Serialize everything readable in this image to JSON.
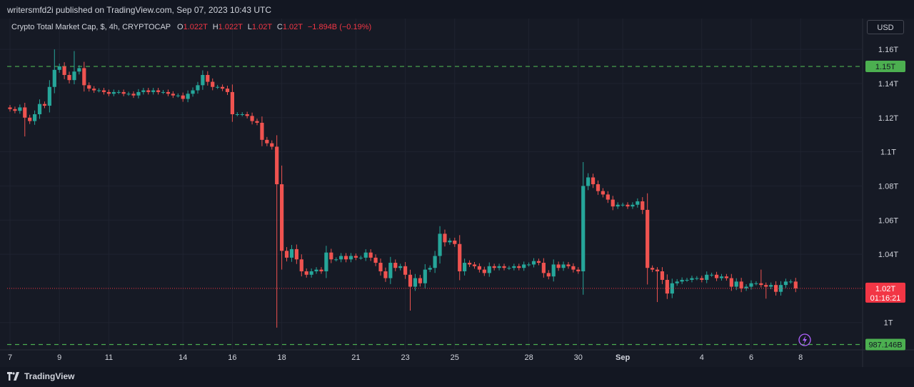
{
  "header": {
    "publisher": "writersmfd2i published on TradingView.com, Sep 07, 2023 10:43 UTC"
  },
  "legend": {
    "symbol": "Crypto Total Market Cap, $, 4h, CRYPTOCAP",
    "o_label": "O",
    "o_value": "1.022T",
    "h_label": "H",
    "h_value": "1.022T",
    "l_label": "L",
    "l_value": "1.02T",
    "c_label": "C",
    "c_value": "1.02T",
    "change": "−1.894B (−0.19%)"
  },
  "currency_button": "USD",
  "footer": {
    "brand": "TradingView"
  },
  "colors": {
    "up": "#26a69a",
    "down": "#ef5350",
    "hline": "#4caf50",
    "price_line": "#f23645",
    "background": "#161a25"
  },
  "chart_data": {
    "type": "candlestick",
    "ylim": [
      0.984,
      1.168
    ],
    "y_ticks": [
      {
        "value": 1.16,
        "label": "1.16T"
      },
      {
        "value": 1.14,
        "label": "1.14T"
      },
      {
        "value": 1.12,
        "label": "1.12T"
      },
      {
        "value": 1.1,
        "label": "1.1T"
      },
      {
        "value": 1.08,
        "label": "1.08T"
      },
      {
        "value": 1.06,
        "label": "1.06T"
      },
      {
        "value": 1.04,
        "label": "1.04T"
      },
      {
        "value": 1.0,
        "label": "1T"
      }
    ],
    "x_ticks": [
      {
        "bar": 0,
        "label": "7"
      },
      {
        "bar": 10,
        "label": "9"
      },
      {
        "bar": 20,
        "label": "11"
      },
      {
        "bar": 35,
        "label": "14"
      },
      {
        "bar": 45,
        "label": "16"
      },
      {
        "bar": 55,
        "label": "18"
      },
      {
        "bar": 70,
        "label": "21"
      },
      {
        "bar": 80,
        "label": "23"
      },
      {
        "bar": 90,
        "label": "25"
      },
      {
        "bar": 105,
        "label": "28"
      },
      {
        "bar": 115,
        "label": "30"
      },
      {
        "bar": 124,
        "label": "Sep",
        "bold": true
      },
      {
        "bar": 140,
        "label": "4"
      },
      {
        "bar": 150,
        "label": "6"
      },
      {
        "bar": 160,
        "label": "8"
      }
    ],
    "horizontal_lines": [
      {
        "value": 1.15,
        "label": "1.15T"
      },
      {
        "value": 0.98715,
        "label": "987.146B"
      }
    ],
    "last_price": {
      "value": 1.02,
      "label": "1.02T",
      "countdown": "01:16:21"
    },
    "close": [
      1.125,
      1.124,
      1.126,
      1.12,
      1.118,
      1.122,
      1.128,
      1.127,
      1.138,
      1.148,
      1.15,
      1.145,
      1.142,
      1.147,
      1.149,
      1.139,
      1.137,
      1.136,
      1.136,
      1.135,
      1.134,
      1.135,
      1.135,
      1.134,
      1.134,
      1.133,
      1.135,
      1.136,
      1.135,
      1.136,
      1.135,
      1.135,
      1.134,
      1.133,
      1.133,
      1.131,
      1.134,
      1.136,
      1.139,
      1.145,
      1.141,
      1.138,
      1.138,
      1.137,
      1.135,
      1.122,
      1.122,
      1.122,
      1.121,
      1.118,
      1.117,
      1.107,
      1.105,
      1.103,
      1.081,
      1.042,
      1.038,
      1.043,
      1.037,
      1.03,
      1.028,
      1.03,
      1.031,
      1.03,
      1.041,
      1.037,
      1.037,
      1.039,
      1.037,
      1.039,
      1.038,
      1.038,
      1.041,
      1.038,
      1.035,
      1.03,
      1.026,
      1.035,
      1.032,
      1.033,
      1.028,
      1.021,
      1.026,
      1.023,
      1.031,
      1.032,
      1.039,
      1.052,
      1.047,
      1.048,
      1.046,
      1.03,
      1.035,
      1.034,
      1.033,
      1.031,
      1.029,
      1.033,
      1.032,
      1.033,
      1.032,
      1.032,
      1.033,
      1.032,
      1.034,
      1.034,
      1.036,
      1.035,
      1.029,
      1.027,
      1.034,
      1.032,
      1.034,
      1.033,
      1.031,
      1.03,
      1.08,
      1.085,
      1.081,
      1.077,
      1.075,
      1.072,
      1.068,
      1.069,
      1.069,
      1.068,
      1.069,
      1.071,
      1.066,
      1.032,
      1.031,
      1.03,
      1.025,
      1.017,
      1.023,
      1.024,
      1.025,
      1.025,
      1.026,
      1.026,
      1.025,
      1.028,
      1.028,
      1.026,
      1.027,
      1.026,
      1.021,
      1.024,
      1.02,
      1.021,
      1.023,
      1.023,
      1.022,
      1.021,
      1.022,
      1.018,
      1.022,
      1.024,
      1.024,
      1.02
    ]
  }
}
